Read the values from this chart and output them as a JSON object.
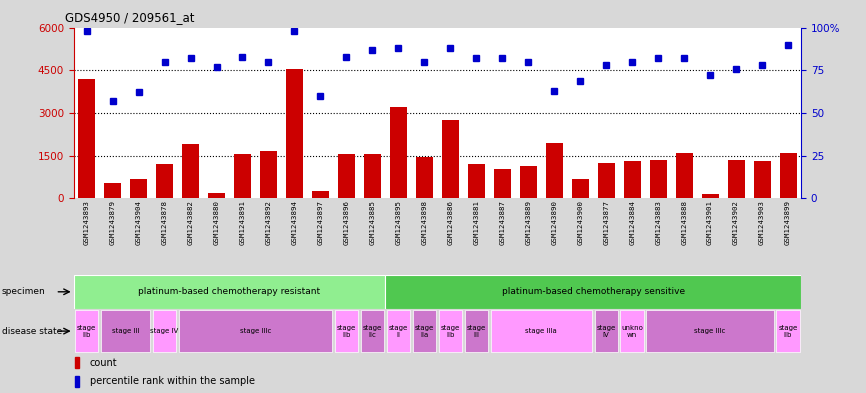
{
  "title": "GDS4950 / 209561_at",
  "samples": [
    "GSM1243893",
    "GSM1243879",
    "GSM1243904",
    "GSM1243878",
    "GSM1243882",
    "GSM1243880",
    "GSM1243891",
    "GSM1243892",
    "GSM1243894",
    "GSM1243897",
    "GSM1243896",
    "GSM1243885",
    "GSM1243895",
    "GSM1243898",
    "GSM1243886",
    "GSM1243881",
    "GSM1243887",
    "GSM1243889",
    "GSM1243890",
    "GSM1243900",
    "GSM1243877",
    "GSM1243884",
    "GSM1243883",
    "GSM1243888",
    "GSM1243901",
    "GSM1243902",
    "GSM1243903",
    "GSM1243899"
  ],
  "counts": [
    4200,
    550,
    700,
    1200,
    1900,
    200,
    1550,
    1650,
    4550,
    250,
    1550,
    1550,
    3200,
    1450,
    2750,
    1200,
    1050,
    1150,
    1950,
    700,
    1250,
    1300,
    1350,
    1600,
    150,
    1350,
    1300,
    1600
  ],
  "percentiles": [
    98,
    57,
    62,
    80,
    82,
    77,
    83,
    80,
    98,
    60,
    83,
    87,
    88,
    80,
    88,
    82,
    82,
    80,
    63,
    69,
    78,
    80,
    82,
    82,
    72,
    76,
    78,
    90
  ],
  "ylim_left": [
    0,
    6000
  ],
  "ylim_right": [
    0,
    100
  ],
  "yticks_left": [
    0,
    1500,
    3000,
    4500,
    6000
  ],
  "ytick_labels_left": [
    "0",
    "1500",
    "3000",
    "4500",
    "6000"
  ],
  "yticks_right": [
    0,
    25,
    50,
    75,
    100
  ],
  "ytick_labels_right": [
    "0",
    "25",
    "50",
    "75",
    "100%"
  ],
  "bar_color": "#cc0000",
  "dot_color": "#0000cc",
  "bg_color": "#d8d8d8",
  "plot_bg": "#ffffff",
  "xtick_bg": "#c0c0c0",
  "specimen_groups": [
    {
      "label": "platinum-based chemotherapy resistant",
      "start": 0,
      "end": 12,
      "color": "#90ee90"
    },
    {
      "label": "platinum-based chemotherapy sensitive",
      "start": 12,
      "end": 28,
      "color": "#50c850"
    }
  ],
  "disease_states": [
    {
      "label": "stage\nIIb",
      "start": 0,
      "end": 1,
      "color": "#ff99ff"
    },
    {
      "label": "stage III",
      "start": 1,
      "end": 3,
      "color": "#cc77cc"
    },
    {
      "label": "stage IV",
      "start": 3,
      "end": 4,
      "color": "#ff99ff"
    },
    {
      "label": "stage IIIc",
      "start": 4,
      "end": 10,
      "color": "#cc77cc"
    },
    {
      "label": "stage\nIIb",
      "start": 10,
      "end": 11,
      "color": "#ff99ff"
    },
    {
      "label": "stage\nIIc",
      "start": 11,
      "end": 12,
      "color": "#cc77cc"
    },
    {
      "label": "stage\nII",
      "start": 12,
      "end": 13,
      "color": "#ff99ff"
    },
    {
      "label": "stage\nIIa",
      "start": 13,
      "end": 14,
      "color": "#cc77cc"
    },
    {
      "label": "stage\nIIb",
      "start": 14,
      "end": 15,
      "color": "#ff99ff"
    },
    {
      "label": "stage\nIII",
      "start": 15,
      "end": 16,
      "color": "#cc77cc"
    },
    {
      "label": "stage IIIa",
      "start": 16,
      "end": 20,
      "color": "#ff99ff"
    },
    {
      "label": "stage\nIV",
      "start": 20,
      "end": 21,
      "color": "#cc77cc"
    },
    {
      "label": "unkno\nwn",
      "start": 21,
      "end": 22,
      "color": "#ff99ff"
    },
    {
      "label": "stage IIIc",
      "start": 22,
      "end": 27,
      "color": "#cc77cc"
    },
    {
      "label": "stage\nIIb",
      "start": 27,
      "end": 28,
      "color": "#ff99ff"
    }
  ]
}
